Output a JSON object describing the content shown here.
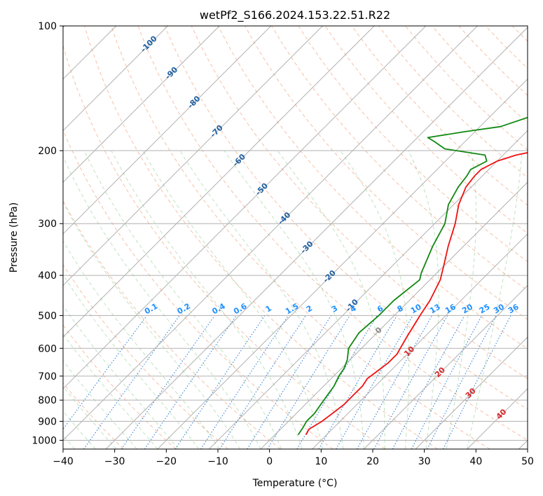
{
  "chart_data": {
    "type": "line",
    "title": "wetPf2_S166.2024.153.22.51.R22",
    "xlabel": "Temperature (°C)",
    "ylabel": "Pressure (hPa)",
    "xlim": [
      -40,
      50
    ],
    "ylim": [
      1050,
      100
    ],
    "y_scale": "log",
    "x_ticks": [
      -40,
      -30,
      -20,
      -10,
      0,
      10,
      20,
      30,
      40,
      50
    ],
    "y_ticks": [
      100,
      200,
      300,
      400,
      500,
      600,
      700,
      800,
      900,
      1000
    ],
    "grid": true,
    "skew_t": true,
    "series": [
      {
        "color": "#ee1111",
        "points": [
          [
            6.0,
            970
          ],
          [
            5.5,
            940
          ],
          [
            6.5,
            900
          ],
          [
            7.0,
            860
          ],
          [
            7.5,
            820
          ],
          [
            7.5,
            780
          ],
          [
            7.5,
            740
          ],
          [
            7.0,
            710
          ],
          [
            7.5,
            680
          ],
          [
            8.0,
            650
          ],
          [
            8.0,
            620
          ],
          [
            6.5,
            560
          ],
          [
            5.0,
            500
          ],
          [
            4.0,
            460
          ],
          [
            2.0,
            410
          ],
          [
            0.0,
            380
          ],
          [
            -3.0,
            340
          ],
          [
            -6.0,
            300
          ],
          [
            -9.0,
            270
          ],
          [
            -11.0,
            245
          ],
          [
            -11.5,
            230
          ],
          [
            -11.5,
            222
          ],
          [
            -10.0,
            212
          ],
          [
            -7.5,
            205
          ],
          [
            -3.0,
            198
          ],
          [
            5.0,
            188
          ],
          [
            7.0,
            182
          ],
          [
            9.0,
            175
          ],
          [
            11.0,
            165
          ],
          [
            12.0,
            158
          ],
          [
            14.0,
            150
          ],
          [
            15.0,
            145
          ],
          [
            18.0,
            140
          ],
          [
            21.0,
            133
          ],
          [
            24.0,
            125
          ],
          [
            27.0,
            117
          ],
          [
            30.0,
            110
          ],
          [
            33.0,
            105
          ],
          [
            35.0,
            100
          ]
        ]
      },
      {
        "color": "#118811",
        "points": [
          [
            4.5,
            970
          ],
          [
            4.0,
            930
          ],
          [
            3.5,
            900
          ],
          [
            3.5,
            860
          ],
          [
            3.0,
            820
          ],
          [
            2.5,
            780
          ],
          [
            2.0,
            740
          ],
          [
            1.0,
            700
          ],
          [
            0.5,
            670
          ],
          [
            -0.5,
            640
          ],
          [
            -2.5,
            600
          ],
          [
            -3.5,
            550
          ],
          [
            -3.0,
            500
          ],
          [
            -3.0,
            460
          ],
          [
            -2.0,
            410
          ],
          [
            -3.0,
            395
          ],
          [
            -6.0,
            340
          ],
          [
            -8.0,
            300
          ],
          [
            -11.0,
            270
          ],
          [
            -12.5,
            245
          ],
          [
            -13.0,
            230
          ],
          [
            -13.5,
            222
          ],
          [
            -12.0,
            212
          ],
          [
            -13.5,
            205
          ],
          [
            -22.5,
            198
          ],
          [
            -26.0,
            190
          ],
          [
            -28.0,
            186
          ],
          [
            -22.0,
            180
          ],
          [
            -16.0,
            175
          ],
          [
            -12.0,
            165
          ],
          [
            -12.5,
            155
          ],
          [
            -15.0,
            148
          ],
          [
            -16.5,
            140
          ],
          [
            -15.0,
            133
          ],
          [
            -12.0,
            125
          ],
          [
            -10.0,
            118
          ],
          [
            -8.0,
            110
          ],
          [
            -7.5,
            100
          ]
        ]
      }
    ],
    "isotherm_labels": [
      "-100",
      "-90",
      "-80",
      "-70",
      "-60",
      "-50",
      "-40",
      "-30",
      "-20",
      "-10",
      "0",
      "10",
      "20",
      "30",
      "40"
    ],
    "mixing_ratio_labels": [
      "0.1",
      "0.2",
      "0.4",
      "0.6",
      "1",
      "1.5",
      "2",
      "3",
      "4",
      "6",
      "8",
      "10",
      "13",
      "16",
      "20",
      "25",
      "30",
      "36"
    ]
  }
}
